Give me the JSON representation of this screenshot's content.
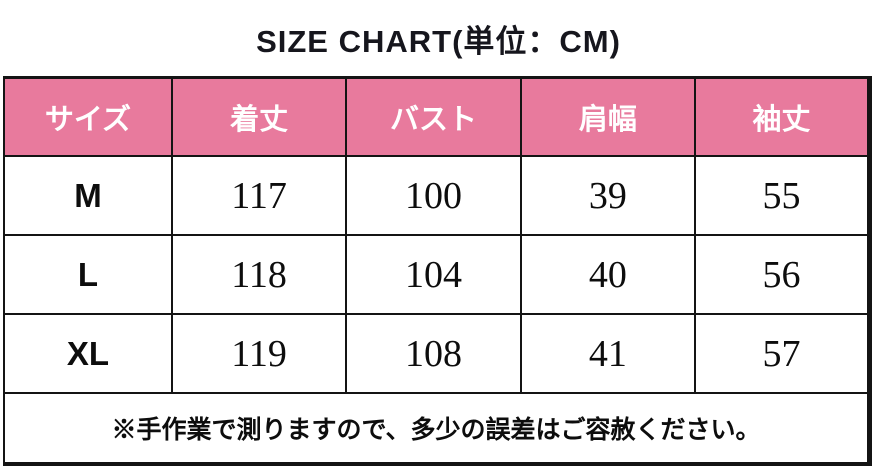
{
  "title": "SIZE CHART(単位：CM)",
  "footnote": "※手作業で測りますので、多少の誤差はご容赦ください。",
  "colors": {
    "header_bg": "#e87a9d",
    "header_text": "#ffffff",
    "border": "#141414",
    "text": "#0d0d0d",
    "background": "#ffffff"
  },
  "chart_data": {
    "type": "table",
    "title": "SIZE CHART(単位：CM)",
    "unit": "CM",
    "columns": [
      "サイズ",
      "着丈",
      "バスト",
      "肩幅",
      "袖丈"
    ],
    "rows": [
      [
        "M",
        117,
        100,
        39,
        55
      ],
      [
        "L",
        118,
        104,
        40,
        56
      ],
      [
        "XL",
        119,
        108,
        41,
        57
      ]
    ],
    "footnote": "※手作業で測りますので、多少の誤差はご容赦ください。"
  }
}
